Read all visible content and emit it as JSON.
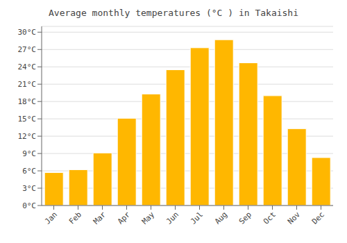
{
  "chart_data": {
    "type": "bar",
    "title": "Average monthly temperatures (°C ) in Takaishi",
    "categories": [
      "Jan",
      "Feb",
      "Mar",
      "Apr",
      "May",
      "Jun",
      "Jul",
      "Aug",
      "Sep",
      "Oct",
      "Nov",
      "Dec"
    ],
    "values": [
      5.7,
      6.2,
      9.1,
      15.1,
      19.3,
      23.5,
      27.3,
      28.7,
      24.7,
      19.0,
      13.3,
      8.3
    ],
    "color": "#FFB700",
    "ylim": [
      0,
      31
    ],
    "yticks": [
      {
        "value": 0,
        "label": "0°C"
      },
      {
        "value": 3,
        "label": "3°C"
      },
      {
        "value": 6,
        "label": "6°C"
      },
      {
        "value": 9,
        "label": "9°C"
      },
      {
        "value": 12,
        "label": "12°C"
      },
      {
        "value": 15,
        "label": "15°C"
      },
      {
        "value": 18,
        "label": "18°C"
      },
      {
        "value": 21,
        "label": "21°C"
      },
      {
        "value": 24,
        "label": "24°C"
      },
      {
        "value": 27,
        "label": "27°C"
      },
      {
        "value": 30,
        "label": "30°C"
      }
    ],
    "grid": true
  }
}
